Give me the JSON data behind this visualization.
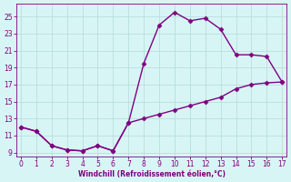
{
  "xlabel": "Windchill (Refroidissement éolien,°C)",
  "line_color": "#800080",
  "bg_color": "#d8f5f5",
  "grid_color": "#b8dede",
  "x_upper": [
    0,
    1,
    2,
    3,
    4,
    5,
    6,
    7,
    8,
    9,
    10,
    11,
    12,
    13,
    14,
    15,
    16,
    17
  ],
  "y_upper": [
    12.0,
    11.5,
    9.8,
    9.3,
    9.2,
    9.8,
    9.2,
    12.5,
    19.5,
    24.0,
    25.5,
    24.5,
    24.8,
    23.5,
    20.5,
    20.5,
    20.3,
    17.3
  ],
  "x_lower": [
    0,
    1,
    2,
    3,
    4,
    5,
    6,
    7,
    8,
    9,
    10,
    11,
    12,
    13,
    14,
    15,
    16,
    17
  ],
  "y_lower": [
    12.0,
    11.5,
    9.8,
    9.3,
    9.2,
    9.8,
    9.2,
    12.5,
    13.0,
    13.5,
    14.0,
    14.5,
    15.0,
    15.5,
    16.5,
    17.0,
    17.2,
    17.3
  ],
  "xlim": [
    -0.3,
    17.3
  ],
  "ylim": [
    8.5,
    26.5
  ],
  "yticks": [
    9,
    11,
    13,
    15,
    17,
    19,
    21,
    23,
    25
  ],
  "xticks": [
    0,
    1,
    2,
    3,
    4,
    5,
    6,
    7,
    8,
    9,
    10,
    11,
    12,
    13,
    14,
    15,
    16,
    17
  ],
  "marker": "D",
  "marker_size": 2.5,
  "line_width": 1.0
}
